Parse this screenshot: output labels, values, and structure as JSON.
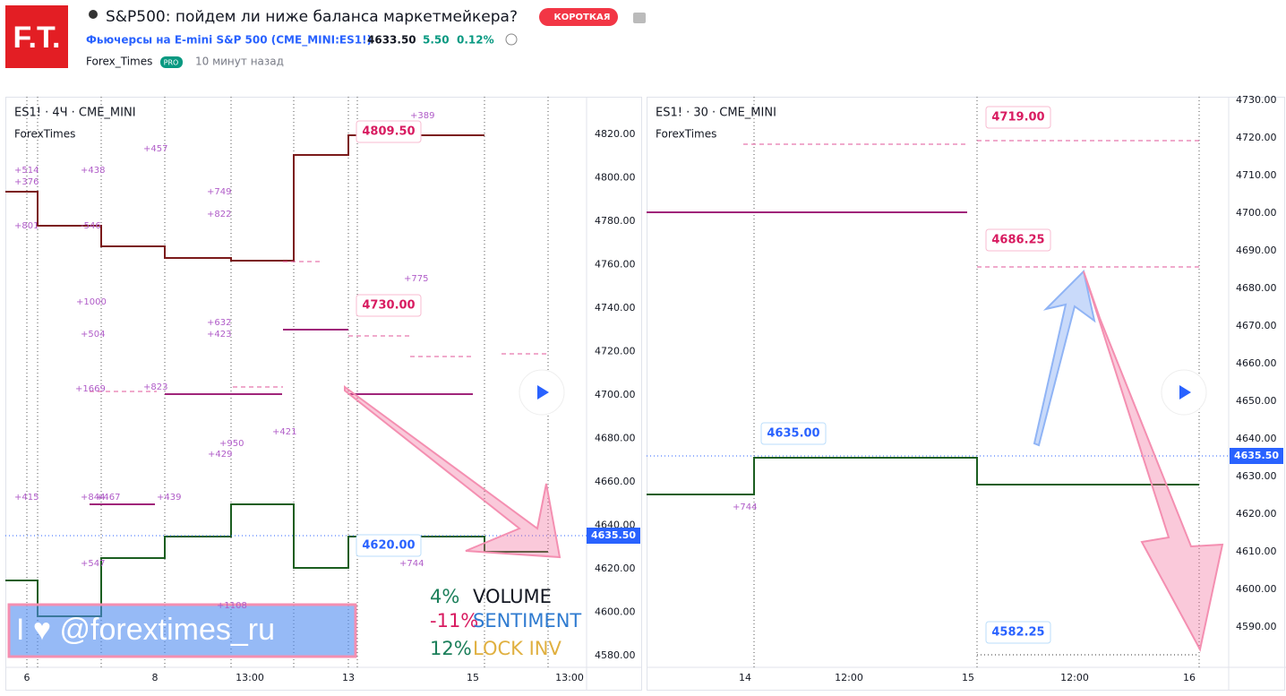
{
  "header": {
    "logo": "F.T.",
    "title": "S&P500: пойдем ли ниже баланса маркетмейкера?",
    "badge": "КОРОТКАЯ",
    "symbol": "Фьючерсы на E-mini S&P 500 (CME_MINI:ES1!)",
    "price": "4633.50",
    "change": "5.50",
    "change_pct": "0.12%",
    "author": "Forex_Times",
    "author_badge": "PRO",
    "time": "10 минут назад"
  },
  "left_chart": {
    "symbol_label": "ES1! · 4Ч · CME_MINI",
    "author_label": "ForexTimes",
    "price_ticks": [
      "4820.00",
      "4800.00",
      "4780.00",
      "4760.00",
      "4740.00",
      "4720.00",
      "4700.00",
      "4680.00",
      "4660.00",
      "4640.00",
      "4620.00",
      "4600.00",
      "4580.00"
    ],
    "time_ticks": [
      "6",
      "8",
      "13:00",
      "13",
      "15",
      "13:00"
    ],
    "level_labels": [
      "4809.50",
      "4730.00",
      "4620.00"
    ],
    "current_price": "4635.50",
    "pivots": [
      "+389",
      "+457",
      "+514",
      "+376",
      "+438",
      "+749",
      "+822",
      "+801",
      "-546",
      "+775",
      "+1000",
      "+632",
      "+504",
      "+423",
      "+1669",
      "+823",
      "+950",
      "+429",
      "+421",
      "+415",
      "+844",
      "+467",
      "+439",
      "+547",
      "+744",
      "+1108"
    ],
    "watermark": "I ♥ @forextimes_ru",
    "table": [
      [
        "4%",
        "VOLUME"
      ],
      [
        "-11%",
        "SENTIMENT"
      ],
      [
        "12%",
        "LOCK INV"
      ]
    ]
  },
  "right_chart": {
    "symbol_label": "ES1! · 30 · CME_MINI",
    "author_label": "ForexTimes",
    "price_ticks": [
      "4730.00",
      "4720.00",
      "4710.00",
      "4700.00",
      "4690.00",
      "4680.00",
      "4670.00",
      "4660.00",
      "4650.00",
      "4640.00",
      "4630.00",
      "4620.00",
      "4610.00",
      "4600.00",
      "4590.00"
    ],
    "time_ticks": [
      "14",
      "12:00",
      "15",
      "12:00",
      "16"
    ],
    "level_labels": [
      "4719.00",
      "4686.25",
      "4635.00",
      "4582.25"
    ],
    "current_price": "4635.50",
    "pivots": [
      "+744"
    ]
  }
}
